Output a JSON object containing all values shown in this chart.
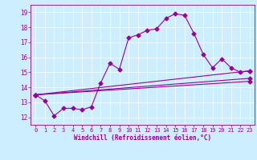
{
  "xlabel": "Windchill (Refroidissement éolien,°C)",
  "background_color": "#cceeff",
  "line_color": "#990099",
  "xlim": [
    -0.5,
    23.5
  ],
  "ylim": [
    11.5,
    19.5
  ],
  "xticks": [
    0,
    1,
    2,
    3,
    4,
    5,
    6,
    7,
    8,
    9,
    10,
    11,
    12,
    13,
    14,
    15,
    16,
    17,
    18,
    19,
    20,
    21,
    22,
    23
  ],
  "yticks": [
    12,
    13,
    14,
    15,
    16,
    17,
    18,
    19
  ],
  "series1_x": [
    0,
    1,
    2,
    3,
    4,
    5,
    6,
    7,
    8,
    9,
    10,
    11,
    12,
    13,
    14,
    15,
    16,
    17,
    18,
    19,
    20,
    21,
    22,
    23
  ],
  "series1_y": [
    13.5,
    13.1,
    12.1,
    12.6,
    12.6,
    12.5,
    12.7,
    14.3,
    15.6,
    15.2,
    17.3,
    17.5,
    17.8,
    17.9,
    18.6,
    18.9,
    18.8,
    17.6,
    16.2,
    15.3,
    15.9,
    15.3,
    15.0,
    15.1
  ],
  "series3_x": [
    0,
    23
  ],
  "series3_y": [
    13.5,
    15.1
  ],
  "series4_x": [
    0,
    23
  ],
  "series4_y": [
    13.5,
    14.6
  ],
  "series5_x": [
    0,
    23
  ],
  "series5_y": [
    13.5,
    14.4
  ],
  "tick_fontsize": 5.0,
  "xlabel_fontsize": 5.5,
  "grid_color": "#ffffff",
  "spine_color": "#990099"
}
